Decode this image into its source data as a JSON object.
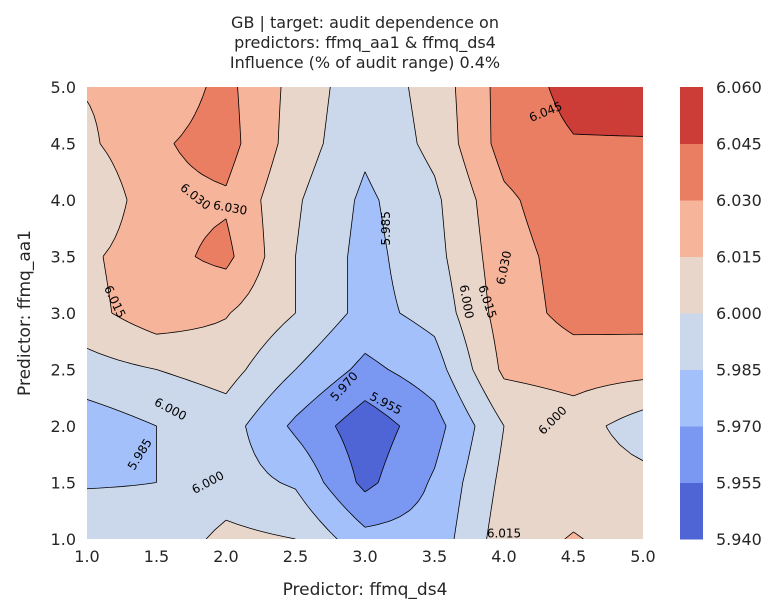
{
  "chart_data": {
    "type": "contour",
    "title_lines": [
      "GB | target: audit dependence on",
      "predictors: ffmq_aa1 & ffmq_ds4",
      "Influence (% of audit range) 0.4%"
    ],
    "xlabel": "Predictor: ffmq_ds4",
    "ylabel": "Predictor: ffmq_aa1",
    "xlim": [
      1.0,
      5.0
    ],
    "ylim": [
      1.0,
      5.0
    ],
    "x_ticks": [
      "1.0",
      "1.5",
      "2.0",
      "2.5",
      "3.0",
      "3.5",
      "4.0",
      "4.5",
      "5.0"
    ],
    "y_ticks": [
      "1.0",
      "1.5",
      "2.0",
      "2.5",
      "3.0",
      "3.5",
      "4.0",
      "4.5",
      "5.0"
    ],
    "levels": [
      5.94,
      5.955,
      5.97,
      5.985,
      6.0,
      6.015,
      6.03,
      6.045,
      6.06
    ],
    "colorbar_ticks": [
      "5.940",
      "5.955",
      "5.970",
      "5.985",
      "6.000",
      "6.015",
      "6.030",
      "6.045",
      "6.060"
    ],
    "band_colors": [
      "#4f65d6",
      "#7a97f2",
      "#a3c0fb",
      "#cbd8ec",
      "#e9d6cb",
      "#f6b49a",
      "#e97e63",
      "#cd3d38"
    ],
    "grid_x": [
      1.0,
      1.5,
      2.0,
      2.5,
      3.0,
      3.5,
      4.0,
      4.5,
      5.0
    ],
    "grid_y": [
      1.0,
      1.5,
      2.0,
      2.5,
      3.0,
      3.5,
      4.0,
      4.5,
      5.0
    ],
    "z": [
      [
        5.993,
        5.99,
        6.004,
        6.0,
        5.975,
        5.976,
        6.008,
        6.016,
        6.009
      ],
      [
        5.984,
        5.985,
        5.992,
        5.983,
        5.951,
        5.972,
        6.004,
        6.008,
        6.005
      ],
      [
        5.977,
        5.985,
        5.992,
        5.967,
        5.946,
        5.964,
        6.0,
        6.007,
        5.992
      ],
      [
        5.994,
        6.0,
        6.006,
        5.985,
        5.966,
        5.978,
        6.018,
        6.022,
        6.02
      ],
      [
        6.01,
        6.024,
        6.016,
        6.0,
        5.98,
        5.99,
        6.022,
        6.035,
        6.036
      ],
      [
        6.012,
        6.025,
        6.034,
        6.0,
        5.98,
        5.995,
        6.024,
        6.036,
        6.038
      ],
      [
        6.0,
        6.026,
        6.028,
        6.002,
        5.982,
        5.997,
        6.027,
        6.04,
        6.04
      ],
      [
        6.012,
        6.028,
        6.036,
        6.008,
        5.988,
        6.004,
        6.036,
        6.044,
        6.044
      ],
      [
        6.016,
        6.02,
        6.034,
        6.01,
        5.99,
        6.006,
        6.036,
        6.05,
        6.052
      ]
    ],
    "contour_labels": [
      {
        "text": "6.045",
        "x": 4.3,
        "y": 4.78,
        "angle": -22
      },
      {
        "text": "6.030",
        "x": 1.78,
        "y": 4.03,
        "angle": 38
      },
      {
        "text": "6.030",
        "x": 2.03,
        "y": 3.93,
        "angle": 10
      },
      {
        "text": "5.985",
        "x": 3.15,
        "y": 3.75,
        "angle": -90
      },
      {
        "text": "6.030",
        "x": 4.0,
        "y": 3.4,
        "angle": -78
      },
      {
        "text": "6.000",
        "x": 3.73,
        "y": 3.1,
        "angle": 80
      },
      {
        "text": "6.015",
        "x": 3.88,
        "y": 3.1,
        "angle": 72
      },
      {
        "text": "6.015",
        "x": 1.2,
        "y": 3.1,
        "angle": 65
      },
      {
        "text": "5.970",
        "x": 2.85,
        "y": 2.35,
        "angle": -48
      },
      {
        "text": "5.955",
        "x": 3.15,
        "y": 2.2,
        "angle": 28
      },
      {
        "text": "6.000",
        "x": 1.6,
        "y": 2.15,
        "angle": 28
      },
      {
        "text": "6.000",
        "x": 4.35,
        "y": 2.05,
        "angle": -45
      },
      {
        "text": "5.985",
        "x": 1.38,
        "y": 1.75,
        "angle": -58
      },
      {
        "text": "6.000",
        "x": 1.87,
        "y": 1.5,
        "angle": -28
      },
      {
        "text": "6.015",
        "x": 4.0,
        "y": 1.05,
        "angle": 0
      }
    ]
  }
}
